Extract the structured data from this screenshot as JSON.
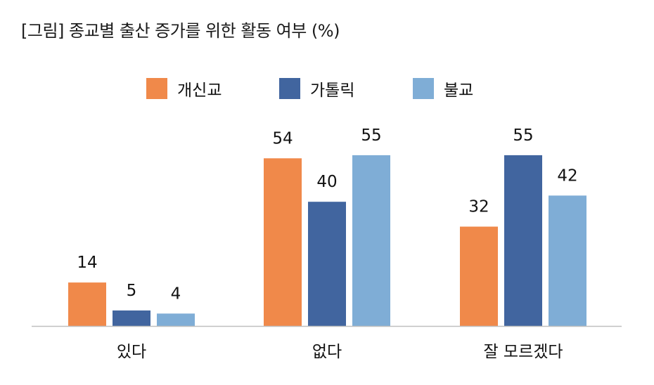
{
  "title": "[그림] 종교별 출산 증가를 위한 활동 여부 (%)",
  "chart_data": {
    "type": "bar",
    "title": "[그림] 종교별 출산 증가를 위한 활동 여부 (%)",
    "categories": [
      "있다",
      "없다",
      "잘 모르겠다"
    ],
    "series": [
      {
        "name": "개신교",
        "values": [
          14,
          54,
          32
        ],
        "color": "#F0894A"
      },
      {
        "name": "가톨릭",
        "values": [
          5,
          40,
          55
        ],
        "color": "#41659F"
      },
      {
        "name": "불교",
        "values": [
          4,
          55,
          42
        ],
        "color": "#7FADD6"
      }
    ],
    "ylim": [
      0,
      60
    ],
    "grid": false,
    "legend": "top-center",
    "data_labels": true
  }
}
